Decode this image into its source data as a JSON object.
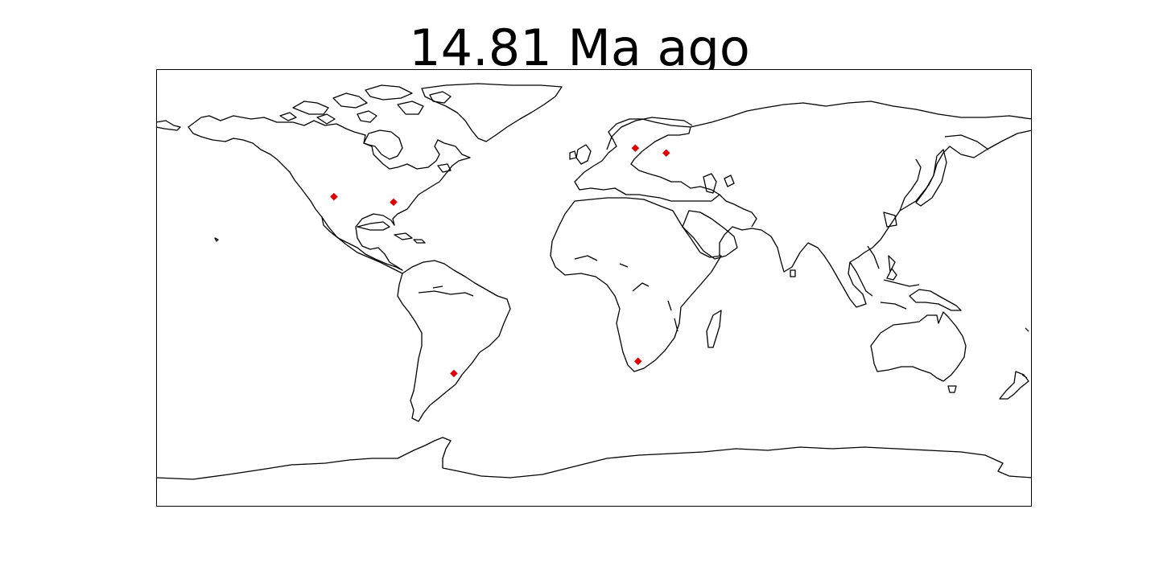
{
  "title": "14.81 Ma ago",
  "map": {
    "projection": "plate-carree",
    "lon_range": [
      -180,
      180
    ],
    "lat_range": [
      -90,
      90
    ],
    "coastline_color": "#000000",
    "frame_color": "#000000",
    "marker": {
      "shape": "diamond",
      "color": "#e00000"
    },
    "points": [
      {
        "lon": -106.9,
        "lat": 37.5
      },
      {
        "lon": -82.4,
        "lat": 35.3
      },
      {
        "lon": 17.0,
        "lat": 57.5
      },
      {
        "lon": 29.7,
        "lat": 55.5
      },
      {
        "lon": -57.6,
        "lat": -35.2
      },
      {
        "lon": 18.1,
        "lat": -30.2
      }
    ]
  }
}
